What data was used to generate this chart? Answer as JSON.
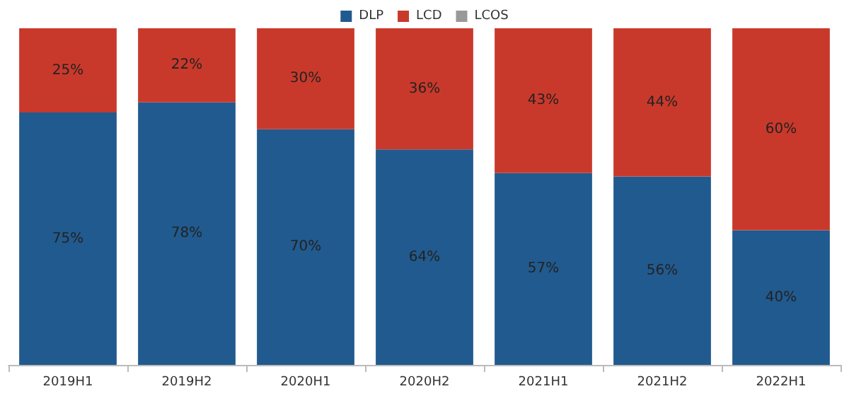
{
  "chart_data": {
    "type": "bar",
    "stacked": true,
    "categories": [
      "2019H1",
      "2019H2",
      "2020H1",
      "2020H2",
      "2021H1",
      "2021H2",
      "2022H1"
    ],
    "series": [
      {
        "name": "DLP",
        "color": "#215a8e",
        "values": [
          75,
          78,
          70,
          64,
          57,
          56,
          40
        ],
        "value_labels": [
          "75%",
          "78%",
          "70%",
          "64%",
          "57%",
          "56%",
          "40%"
        ]
      },
      {
        "name": "LCD",
        "color": "#c9392b",
        "values": [
          25,
          22,
          30,
          36,
          43,
          44,
          60
        ],
        "value_labels": [
          "25%",
          "22%",
          "30%",
          "36%",
          "43%",
          "44%",
          "60%"
        ]
      },
      {
        "name": "LCOS",
        "color": "#999999",
        "values": [
          0,
          0,
          0,
          0,
          0,
          0,
          0
        ]
      }
    ],
    "ylim": [
      0,
      100
    ],
    "tick_labels": "x",
    "grid": false,
    "legend": "top"
  }
}
